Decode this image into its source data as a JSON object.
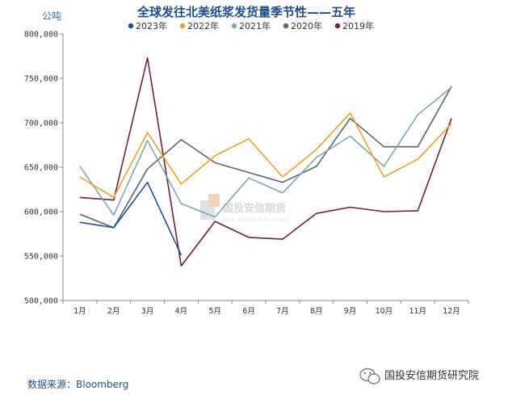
{
  "chart_data": {
    "type": "line",
    "title": "全球发往北美纸浆发货量季节性——五年",
    "ylabel": "公吨",
    "xlabel": "",
    "ylim": [
      500000,
      800000
    ],
    "ytick_values": [
      500000,
      550000,
      600000,
      650000,
      700000,
      750000,
      800000
    ],
    "ytick_labels": [
      "500,000",
      "550,000",
      "600,000",
      "650,000",
      "700,000",
      "750,000",
      "800,000"
    ],
    "categories": [
      "1月",
      "2月",
      "3月",
      "4月",
      "5月",
      "6月",
      "7月",
      "8月",
      "9月",
      "10月",
      "11月",
      "12月"
    ],
    "legend_position": "top",
    "series": [
      {
        "name": "2023年",
        "color": "#1a4fa0",
        "values": [
          588000,
          582000,
          633000,
          551000,
          null,
          null,
          null,
          null,
          null,
          null,
          null,
          null
        ]
      },
      {
        "name": "2022年",
        "color": "#f0a21a",
        "values": [
          639000,
          616000,
          689000,
          631000,
          663000,
          682000,
          639000,
          670000,
          711000,
          639000,
          659000,
          699000
        ]
      },
      {
        "name": "2021年",
        "color": "#79abb2",
        "values": [
          651000,
          596000,
          680000,
          609000,
          594000,
          638000,
          621000,
          661000,
          685000,
          651000,
          709000,
          740000
        ]
      },
      {
        "name": "2020年",
        "color": "#5b6770",
        "values": [
          597000,
          582000,
          648000,
          681000,
          655000,
          644000,
          633000,
          651000,
          705000,
          673000,
          673000,
          741000
        ]
      },
      {
        "name": "2019年",
        "color": "#6b1f4a",
        "values": [
          616000,
          613000,
          773000,
          539000,
          589000,
          571000,
          569000,
          598000,
          605000,
          600000,
          601000,
          705000
        ]
      }
    ]
  },
  "watermark": {
    "name": "国投安信期货",
    "sub": "SDIC ESSENCE FUTURES"
  },
  "footer": {
    "source": "数据来源：Bloomberg",
    "brand": "国投安信期货研究院",
    "brand_icon": "wechat-icon"
  }
}
